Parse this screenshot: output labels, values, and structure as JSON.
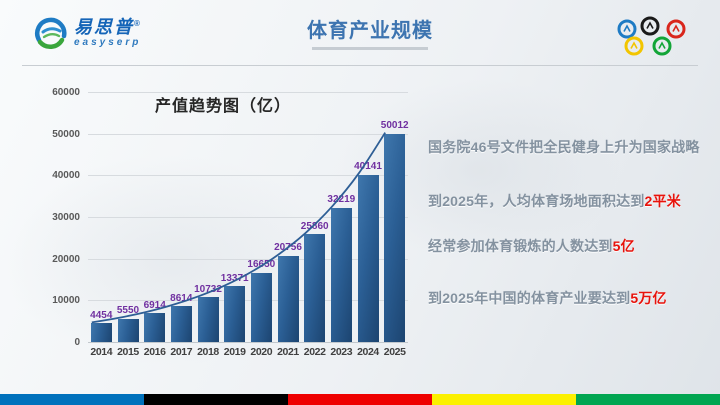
{
  "header": {
    "logo_cn": "易思普",
    "logo_reg": "®",
    "logo_en": "easyserp",
    "title": "体育产业规模"
  },
  "olympic": {
    "rings": [
      {
        "name": "ring-blue",
        "color": "#1e7bc4"
      },
      {
        "name": "ring-black",
        "color": "#1a1a1a"
      },
      {
        "name": "ring-red",
        "color": "#d9261c"
      },
      {
        "name": "ring-yellow",
        "color": "#f2c500"
      },
      {
        "name": "ring-green",
        "color": "#13a538"
      }
    ]
  },
  "chart_data": {
    "type": "bar",
    "title": "产值趋势图（亿）",
    "categories": [
      "2014",
      "2015",
      "2016",
      "2017",
      "2018",
      "2019",
      "2020",
      "2021",
      "2022",
      "2023",
      "2024",
      "2025"
    ],
    "values": [
      4454,
      5550,
      6914,
      8614,
      10732,
      13371,
      16650,
      20756,
      25860,
      32219,
      40141,
      50012
    ],
    "ylim": [
      0,
      60000
    ],
    "yticks": [
      0,
      10000,
      20000,
      30000,
      40000,
      50000,
      60000
    ],
    "grid": true,
    "trendline": true,
    "legend": "none",
    "colors": {
      "bar_gradient": [
        "#3f77ad",
        "#1c4470"
      ],
      "trend_line": "#2e5e95",
      "value_label": "#7030a0",
      "y_tick": "#595959",
      "x_tick": "#404040"
    }
  },
  "bullets": [
    {
      "text": "国务院46号文件把全民健身上升为国家战略",
      "highlight": ""
    },
    {
      "text": "到2025年，人均体育场地面积达到",
      "highlight": "2平米"
    },
    {
      "text": "经常参加体育锻炼的人数达到",
      "highlight": "5亿"
    },
    {
      "text": "到2025年中国的体育产业要达到",
      "highlight": "5万亿"
    }
  ],
  "footer": {
    "colors": [
      "#0071bc",
      "#000000",
      "#ee0000",
      "#fbf000",
      "#00a551"
    ]
  }
}
